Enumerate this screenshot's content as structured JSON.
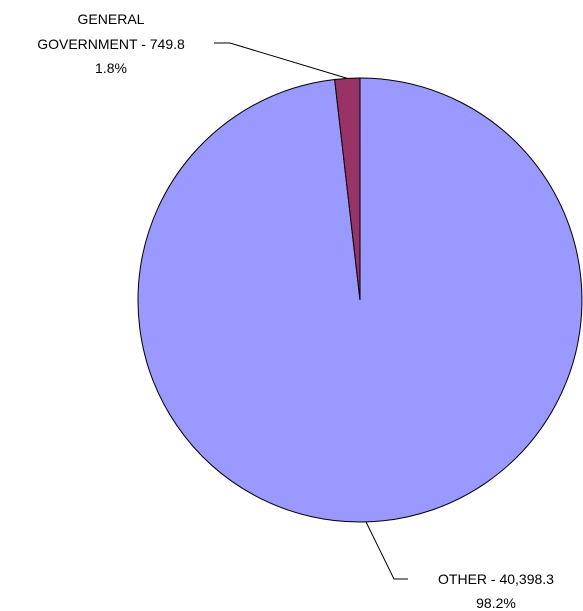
{
  "chart_data": {
    "type": "pie",
    "slices": [
      {
        "label_lines": [
          "GENERAL",
          "GOVERNMENT - 749.8"
        ],
        "name": "GENERAL GOVERNMENT",
        "value": 749.8,
        "value_text": "749.8",
        "percent": 1.8,
        "percent_text": "1.8%",
        "color": "#993366"
      },
      {
        "label_lines": [
          "OTHER - 40,398.3"
        ],
        "name": "OTHER",
        "value": 40398.3,
        "value_text": "40,398.3",
        "percent": 98.2,
        "percent_text": "98.2%",
        "color": "#9999ff"
      }
    ],
    "start_angle": "12 o'clock",
    "direction": "counter-clockwise from 12 o'clock for first slice",
    "legend": "none"
  },
  "colors": {
    "outline": "#000000",
    "background": "#ffffff"
  }
}
